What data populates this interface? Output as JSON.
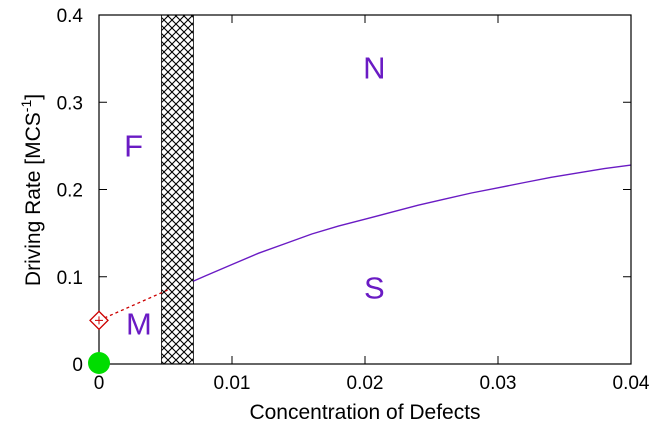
{
  "chart_data": {
    "type": "line",
    "title": "",
    "xlabel": "Concentration of Defects",
    "ylabel_main": "Driving Rate  [MCS",
    "ylabel_sup": "-1",
    "ylabel_end": "]",
    "xlim": [
      0,
      0.04
    ],
    "ylim": [
      0,
      0.4
    ],
    "x_ticks": [
      {
        "value": 0,
        "label": "0"
      },
      {
        "value": 0.01,
        "label": "0.01"
      },
      {
        "value": 0.02,
        "label": "0.02"
      },
      {
        "value": 0.03,
        "label": "0.03"
      },
      {
        "value": 0.04,
        "label": "0.04"
      }
    ],
    "y_ticks": [
      {
        "value": 0,
        "label": "0"
      },
      {
        "value": 0.1,
        "label": "0.1"
      },
      {
        "value": 0.2,
        "label": "0.2"
      },
      {
        "value": 0.3,
        "label": "0.3"
      },
      {
        "value": 0.4,
        "label": "0.4"
      }
    ],
    "grid": false,
    "boundary_solid": {
      "color": "#6a1bc4",
      "x": [
        0.0071,
        0.008,
        0.01,
        0.012,
        0.014,
        0.016,
        0.018,
        0.02,
        0.022,
        0.024,
        0.026,
        0.028,
        0.03,
        0.032,
        0.034,
        0.036,
        0.038,
        0.04
      ],
      "y": [
        0.095,
        0.101,
        0.114,
        0.127,
        0.138,
        0.149,
        0.158,
        0.166,
        0.174,
        0.182,
        0.189,
        0.196,
        0.202,
        0.208,
        0.214,
        0.219,
        0.224,
        0.228
      ]
    },
    "boundary_dashed": {
      "color": "#cc0000",
      "x": [
        0,
        0.0052
      ],
      "y": [
        0.05,
        0.085
      ]
    },
    "diamond_marker": {
      "x": 0,
      "y": 0.05,
      "color": "#cc0000"
    },
    "green_marker": {
      "x": 0,
      "y": 0,
      "color": "#00dd00"
    },
    "hatched_band": {
      "x_from": 0.0047,
      "x_to": 0.0071
    },
    "region_labels": [
      {
        "text": "N",
        "x": 0.0207,
        "y": 0.327
      },
      {
        "text": "F",
        "x": 0.0026,
        "y": 0.238
      },
      {
        "text": "S",
        "x": 0.0207,
        "y": 0.075
      },
      {
        "text": "M",
        "x": 0.003,
        "y": 0.034
      }
    ],
    "region_color": "#6a1bc4"
  }
}
